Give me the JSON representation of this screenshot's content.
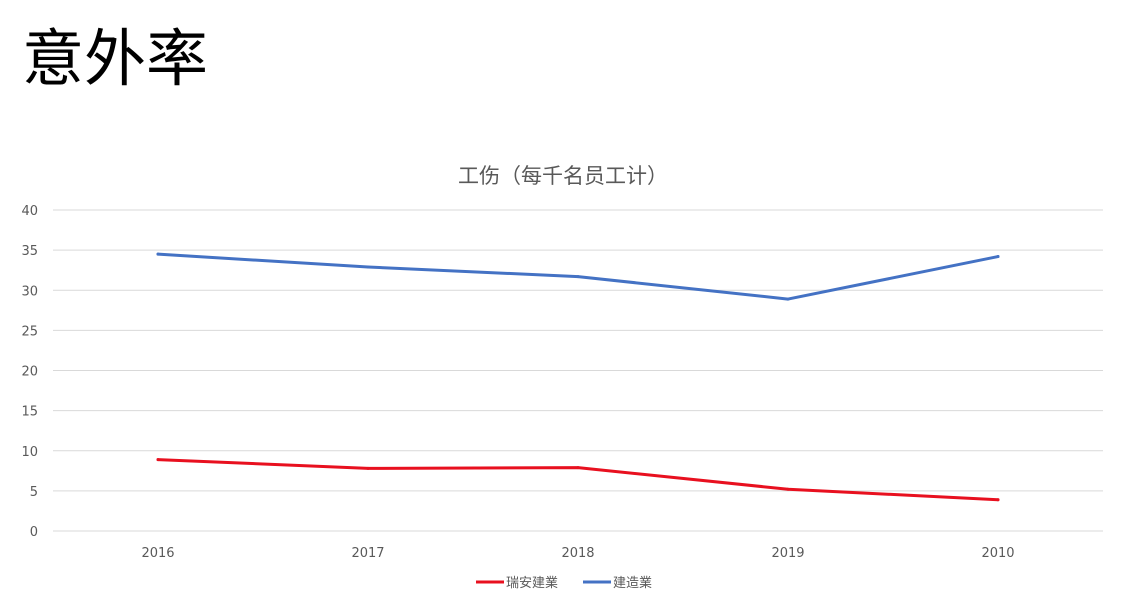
{
  "slide": {
    "title": "意外率"
  },
  "chart_data": {
    "type": "line",
    "title": "工伤（每千名员工计）",
    "xlabel": "",
    "ylabel": "",
    "categories": [
      "2016",
      "2017",
      "2018",
      "2019",
      "2010"
    ],
    "ylim": [
      0,
      40
    ],
    "yticks": [
      0,
      5,
      10,
      15,
      20,
      25,
      30,
      35,
      40
    ],
    "grid": "horizontal",
    "legend_position": "bottom",
    "series": [
      {
        "name": "瑞安建業",
        "color": "#e8101f",
        "values": [
          8.9,
          7.8,
          7.9,
          5.2,
          3.9
        ]
      },
      {
        "name": "建造業",
        "color": "#4472c4",
        "values": [
          34.5,
          32.9,
          31.7,
          28.9,
          34.2
        ]
      }
    ]
  }
}
